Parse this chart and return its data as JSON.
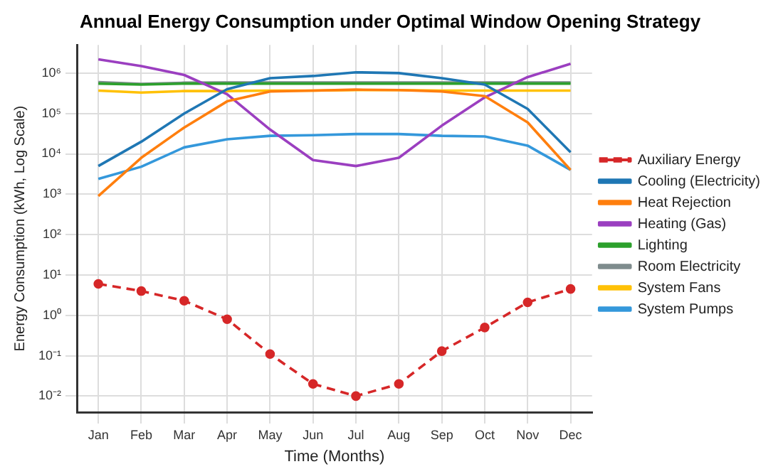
{
  "chart_data": {
    "type": "line",
    "title": "Annual Energy Consumption under Optimal Window Opening Strategy",
    "xlabel": "Time (Months)",
    "ylabel": "Energy Consumption (kWh, Log Scale)",
    "categories": [
      "Jan",
      "Feb",
      "Mar",
      "Apr",
      "May",
      "Jun",
      "Jul",
      "Aug",
      "Sep",
      "Oct",
      "Nov",
      "Dec"
    ],
    "log": "y",
    "ylim": [
      0.004,
      5000000
    ],
    "yticks": [
      {
        "value": 0.01,
        "label": "10⁻²"
      },
      {
        "value": 0.1,
        "label": "10⁻¹"
      },
      {
        "value": 1,
        "label": "10⁰"
      },
      {
        "value": 10,
        "label": "10¹"
      },
      {
        "value": 100,
        "label": "10²"
      },
      {
        "value": 1000,
        "label": "10³"
      },
      {
        "value": 10000,
        "label": "10⁴"
      },
      {
        "value": 100000,
        "label": "10⁵"
      },
      {
        "value": 1000000,
        "label": "10⁶"
      }
    ],
    "grid": true,
    "legend": "right",
    "series": [
      {
        "name": "Auxiliary Energy",
        "color": "#d62728",
        "marker": "circle",
        "line_style": "dashed",
        "values": [
          6,
          4,
          2.3,
          0.8,
          0.11,
          0.02,
          0.01,
          0.02,
          0.13,
          0.5,
          2.1,
          4.5
        ]
      },
      {
        "name": "Cooling (Electricity)",
        "color": "#1f77b4",
        "values": [
          5000,
          20000,
          100000,
          400000,
          750000,
          850000,
          1050000,
          1000000,
          750000,
          520000,
          130000,
          11000
        ]
      },
      {
        "name": "Heat Rejection",
        "color": "#ff7f0e",
        "values": [
          900,
          8000,
          45000,
          200000,
          350000,
          370000,
          390000,
          380000,
          350000,
          270000,
          60000,
          4000
        ]
      },
      {
        "name": "Heating (Gas)",
        "color": "#9b3fc0",
        "values": [
          2200000,
          1500000,
          900000,
          300000,
          40000,
          7000,
          5000,
          8000,
          50000,
          250000,
          800000,
          1700000
        ]
      },
      {
        "name": "Lighting",
        "color": "#2ca02c",
        "values": [
          550000,
          520000,
          550000,
          550000,
          550000,
          550000,
          550000,
          550000,
          550000,
          550000,
          550000,
          550000
        ]
      },
      {
        "name": "Room Electricity",
        "color": "#7f8c8d",
        "values": [
          600000,
          540000,
          580000,
          590000,
          590000,
          590000,
          590000,
          590000,
          590000,
          590000,
          590000,
          590000
        ]
      },
      {
        "name": "System Fans",
        "color": "#ffc107",
        "values": [
          370000,
          330000,
          360000,
          360000,
          370000,
          370000,
          380000,
          380000,
          370000,
          370000,
          370000,
          370000
        ]
      },
      {
        "name": "System Pumps",
        "color": "#3498db",
        "values": [
          2400,
          4800,
          14500,
          23000,
          28000,
          29000,
          31000,
          31000,
          28000,
          27000,
          16000,
          4000
        ]
      }
    ]
  }
}
